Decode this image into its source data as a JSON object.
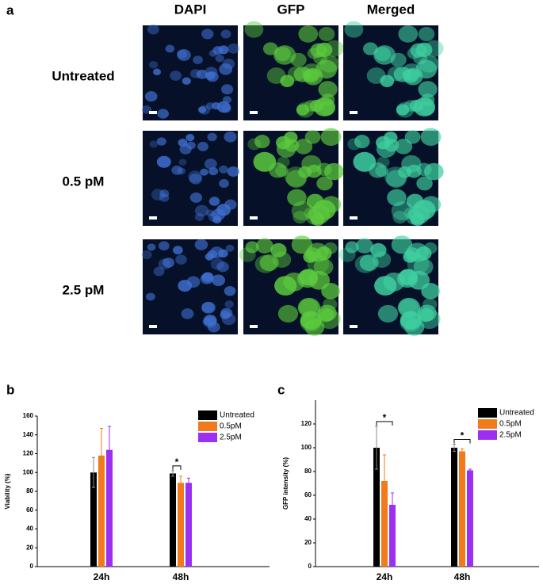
{
  "panel_a": {
    "label": "a",
    "columns": [
      "DAPI",
      "GFP",
      "Merged"
    ],
    "rows": [
      "Untreated",
      "0.5 pM",
      "2.5 pM"
    ]
  },
  "chart_data": [
    {
      "type": "bar",
      "panel": "b",
      "ylabel": "Viability (%)",
      "categories": [
        "24h",
        "48h"
      ],
      "ylim": [
        0,
        160
      ],
      "yticks": [
        0,
        20,
        40,
        60,
        80,
        100,
        120,
        140,
        160
      ],
      "series": [
        {
          "name": "Untreated",
          "color": "#000000",
          "values": [
            100,
            99
          ],
          "errors": [
            16,
            3
          ]
        },
        {
          "name": "0.5pM",
          "color": "#f07a1c",
          "values": [
            118,
            89
          ],
          "errors": [
            29,
            7
          ]
        },
        {
          "name": "2.5pM",
          "color": "#9b30f0",
          "values": [
            124,
            89
          ],
          "errors": [
            25,
            5
          ]
        }
      ],
      "annotations": [
        "*"
      ]
    },
    {
      "type": "bar",
      "panel": "c",
      "ylabel": "GFP intensity (%)",
      "categories": [
        "24h",
        "48h"
      ],
      "ylim": [
        0,
        140
      ],
      "yticks": [
        0,
        20,
        40,
        60,
        80,
        100,
        120
      ],
      "series": [
        {
          "name": "Untreated",
          "color": "#000000",
          "values": [
            100,
            100
          ],
          "errors": [
            18,
            3
          ]
        },
        {
          "name": "0.5pM",
          "color": "#f07a1c",
          "values": [
            72,
            97
          ],
          "errors": [
            22,
            2
          ]
        },
        {
          "name": "2.5pM",
          "color": "#9b30f0",
          "values": [
            52,
            81
          ],
          "errors": [
            10,
            1
          ]
        }
      ],
      "annotations": [
        "*",
        "*"
      ]
    }
  ]
}
